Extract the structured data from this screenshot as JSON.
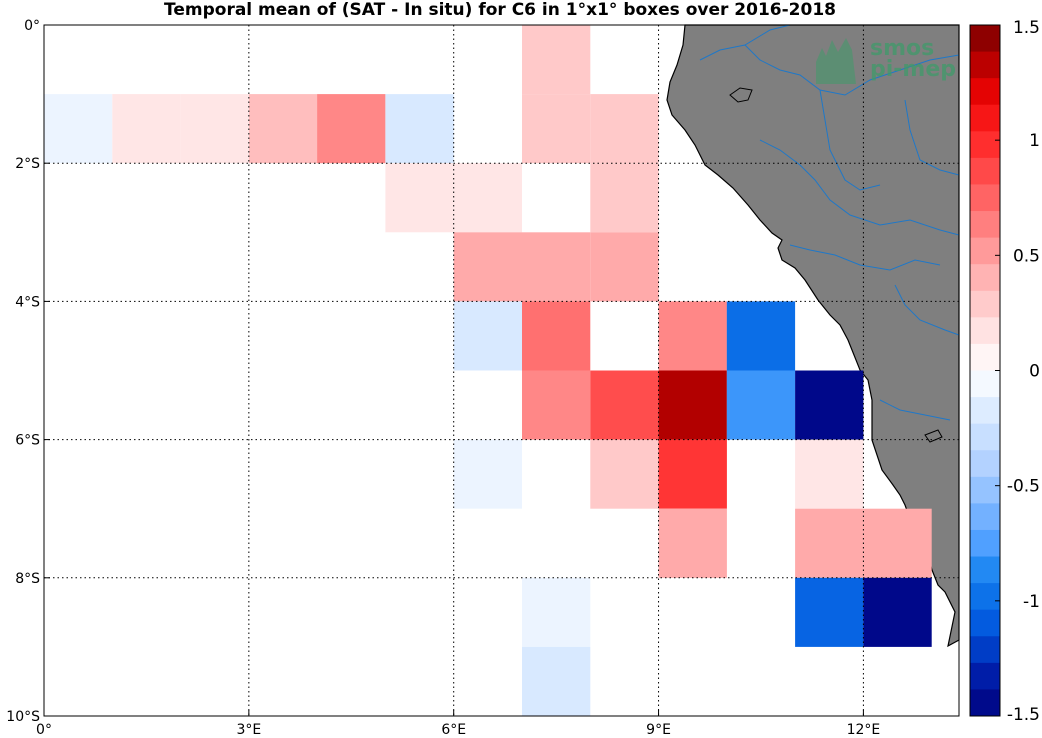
{
  "title": "Temporal mean of (SAT - In situ) for C6 in 1°x1° boxes over 2016-2018",
  "axes": {
    "x_ticks": [
      {
        "value": 0,
        "label": "0°"
      },
      {
        "value": 3,
        "label": "3°E"
      },
      {
        "value": 6,
        "label": "6°E"
      },
      {
        "value": 9,
        "label": "9°E"
      },
      {
        "value": 12,
        "label": "12°E"
      }
    ],
    "y_ticks": [
      {
        "value": 0,
        "label": "0°"
      },
      {
        "value": -2,
        "label": "2°S"
      },
      {
        "value": -4,
        "label": "4°S"
      },
      {
        "value": -6,
        "label": "6°S"
      },
      {
        "value": -8,
        "label": "8°S"
      },
      {
        "value": -10,
        "label": "10°S"
      }
    ]
  },
  "logo": {
    "line1": "smos",
    "line2": "pi-mep"
  },
  "colors": {
    "land": "#7f7f7f",
    "rivers": "#1f78c8",
    "coastline": "#000000",
    "grid": "#000000"
  },
  "colorbar": {
    "levels": 26,
    "ticks": [
      {
        "value": 1.5,
        "label": "1.5"
      },
      {
        "value": 1,
        "label": "1"
      },
      {
        "value": 0.5,
        "label": "0.5"
      },
      {
        "value": 0,
        "label": "0"
      },
      {
        "value": -0.5,
        "label": "-0.5"
      },
      {
        "value": -1,
        "label": "-1"
      },
      {
        "value": -1.5,
        "label": "-1.5"
      }
    ]
  },
  "chart_data": {
    "type": "heatmap",
    "title": "Temporal mean of (SAT - In situ) for C6 in 1°x1° boxes over 2016-2018",
    "xlim": [
      0,
      13.4
    ],
    "ylim": [
      -10,
      0
    ],
    "cell_size_deg": 1,
    "value_range": [
      -1.5,
      1.5
    ],
    "cells": [
      {
        "lon": 7,
        "lat": 0,
        "value": 0.3
      },
      {
        "lon": 0,
        "lat": -1,
        "value": -0.1
      },
      {
        "lon": 1,
        "lat": -1,
        "value": 0.15
      },
      {
        "lon": 2,
        "lat": -1,
        "value": 0.15
      },
      {
        "lon": 3,
        "lat": -1,
        "value": 0.35
      },
      {
        "lon": 4,
        "lat": -1,
        "value": 0.6
      },
      {
        "lon": 5,
        "lat": -1,
        "value": -0.2
      },
      {
        "lon": 7,
        "lat": -1,
        "value": 0.3
      },
      {
        "lon": 8,
        "lat": -1,
        "value": 0.3
      },
      {
        "lon": 5,
        "lat": -2,
        "value": 0.15
      },
      {
        "lon": 6,
        "lat": -2,
        "value": 0.15
      },
      {
        "lon": 8,
        "lat": -2,
        "value": 0.3
      },
      {
        "lon": 6,
        "lat": -3,
        "value": 0.45
      },
      {
        "lon": 7,
        "lat": -3,
        "value": 0.45
      },
      {
        "lon": 8,
        "lat": -3,
        "value": 0.45
      },
      {
        "lon": 6,
        "lat": -4,
        "value": -0.2
      },
      {
        "lon": 7,
        "lat": -4,
        "value": 0.7
      },
      {
        "lon": 9,
        "lat": -4,
        "value": 0.6
      },
      {
        "lon": 10,
        "lat": -4,
        "value": -1.0
      },
      {
        "lon": 7,
        "lat": -5,
        "value": 0.6
      },
      {
        "lon": 8,
        "lat": -5,
        "value": 0.85
      },
      {
        "lon": 9,
        "lat": -5,
        "value": 1.35
      },
      {
        "lon": 10,
        "lat": -5,
        "value": -0.8
      },
      {
        "lon": 11,
        "lat": -5,
        "value": -1.45
      },
      {
        "lon": 6,
        "lat": -6,
        "value": -0.1
      },
      {
        "lon": 8,
        "lat": -6,
        "value": 0.3
      },
      {
        "lon": 9,
        "lat": -6,
        "value": 0.95
      },
      {
        "lon": 11,
        "lat": -6,
        "value": 0.15
      },
      {
        "lon": 9,
        "lat": -7,
        "value": 0.45
      },
      {
        "lon": 11,
        "lat": -7,
        "value": 0.45
      },
      {
        "lon": 12,
        "lat": -7,
        "value": 0.45
      },
      {
        "lon": 7,
        "lat": -8,
        "value": -0.1
      },
      {
        "lon": 11,
        "lat": -8,
        "value": -1.05
      },
      {
        "lon": 12,
        "lat": -8,
        "value": -1.45
      },
      {
        "lon": 7,
        "lat": -9,
        "value": -0.2
      }
    ]
  }
}
